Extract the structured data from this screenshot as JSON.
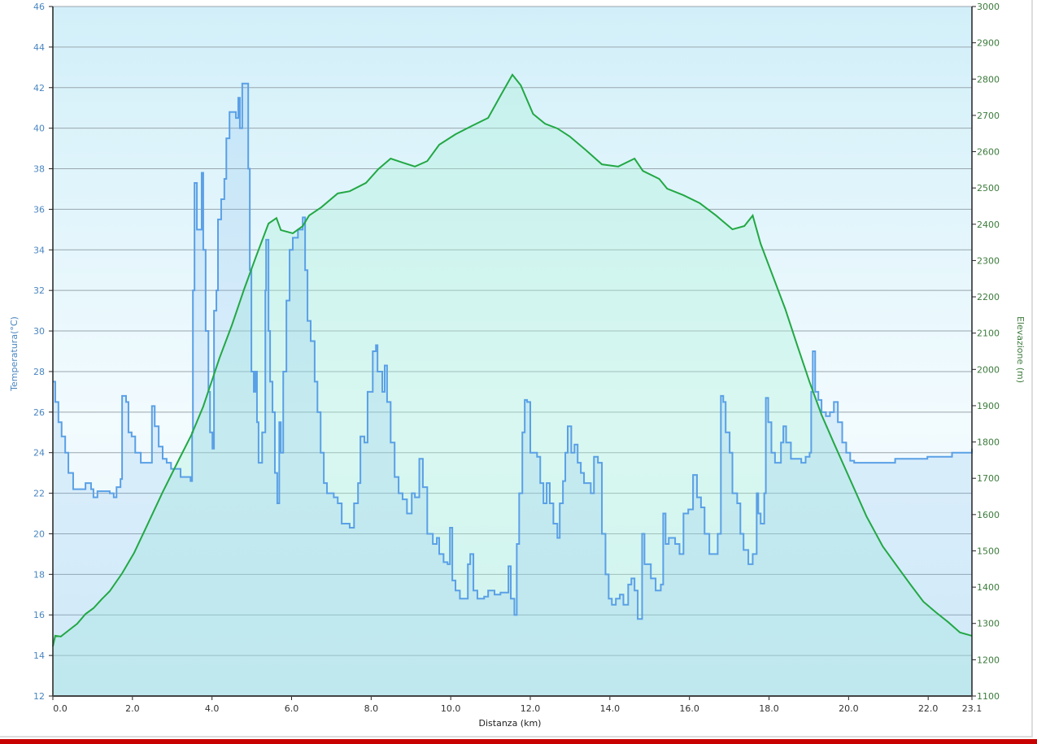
{
  "chart_data": {
    "type": "line",
    "xlabel": "Distanza  (km)",
    "ylabel_left": "Temperatura(°C)",
    "ylabel_right": "Elevazione (m)",
    "xlim": [
      0,
      23.1
    ],
    "ylim_left": [
      12,
      46
    ],
    "ylim_right": [
      1100,
      3000
    ],
    "x_ticks": [
      "0.0",
      "2.0",
      "4.0",
      "6.0",
      "8.0",
      "10.0",
      "12.0",
      "14.0",
      "16.0",
      "18.0",
      "20.0",
      "22.0",
      "23.1"
    ],
    "x_tick_values": [
      0,
      2,
      4,
      6,
      8,
      10,
      12,
      14,
      16,
      18,
      20,
      22,
      23.1
    ],
    "y_left_ticks": [
      "12",
      "14",
      "16",
      "18",
      "20",
      "22",
      "24",
      "26",
      "28",
      "30",
      "32",
      "34",
      "36",
      "38",
      "40",
      "42",
      "44",
      "46"
    ],
    "y_right_ticks": [
      "1100",
      "1200",
      "1300",
      "1400",
      "1500",
      "1600",
      "1700",
      "1800",
      "1900",
      "2000",
      "2100",
      "2200",
      "2300",
      "2400",
      "2500",
      "2600",
      "2700",
      "2800",
      "2900",
      "3000"
    ],
    "grid": true,
    "colors": {
      "temperature": "#5aa0e6",
      "elevation": "#22a844",
      "left_axis": "#4a86c0",
      "right_axis": "#3c7a3c"
    },
    "series": [
      {
        "name": "Temperatura",
        "axis": "left",
        "step": true,
        "x": [
          0,
          0.06,
          0.14,
          0.22,
          0.31,
          0.39,
          0.51,
          0.72,
          0.82,
          0.96,
          1.02,
          1.12,
          1.43,
          1.53,
          1.6,
          1.7,
          1.74,
          1.84,
          1.9,
          1.98,
          2.07,
          2.21,
          2.45,
          2.49,
          2.56,
          2.66,
          2.76,
          2.86,
          2.97,
          3.21,
          3.46,
          3.5,
          3.52,
          3.56,
          3.62,
          3.68,
          3.74,
          3.78,
          3.84,
          3.91,
          3.95,
          4.01,
          4.05,
          4.11,
          4.15,
          4.23,
          4.31,
          4.36,
          4.44,
          4.6,
          4.66,
          4.7,
          4.76,
          4.85,
          4.91,
          4.95,
          4.99,
          5.05,
          5.09,
          5.13,
          5.17,
          5.26,
          5.34,
          5.36,
          5.42,
          5.46,
          5.52,
          5.58,
          5.64,
          5.69,
          5.73,
          5.79,
          5.87,
          5.95,
          6.03,
          6.16,
          6.28,
          6.34,
          6.4,
          6.48,
          6.58,
          6.65,
          6.73,
          6.81,
          6.89,
          7.06,
          7.16,
          7.26,
          7.46,
          7.57,
          7.67,
          7.73,
          7.83,
          7.91,
          8.04,
          8.12,
          8.16,
          8.28,
          8.34,
          8.4,
          8.49,
          8.59,
          8.69,
          8.79,
          8.9,
          9.02,
          9.1,
          9.21,
          9.3,
          9.41,
          9.55,
          9.65,
          9.71,
          9.82,
          9.92,
          9.98,
          10.04,
          10.12,
          10.23,
          10.37,
          10.43,
          10.49,
          10.57,
          10.67,
          10.84,
          10.94,
          11.1,
          11.25,
          11.35,
          11.45,
          11.51,
          11.6,
          11.66,
          11.72,
          11.8,
          11.86,
          11.92,
          12.0,
          12.17,
          12.25,
          12.33,
          12.41,
          12.49,
          12.58,
          12.68,
          12.74,
          12.82,
          12.88,
          12.94,
          13.03,
          13.11,
          13.19,
          13.27,
          13.35,
          13.44,
          13.52,
          13.6,
          13.7,
          13.8,
          13.89,
          13.97,
          14.05,
          14.15,
          14.25,
          14.34,
          14.46,
          14.54,
          14.62,
          14.7,
          14.76,
          14.81,
          14.87,
          14.97,
          15.03,
          15.15,
          15.28,
          15.34,
          15.4,
          15.48,
          15.64,
          15.75,
          15.85,
          15.97,
          16.09,
          16.19,
          16.29,
          16.38,
          16.5,
          16.63,
          16.71,
          16.79,
          16.85,
          16.91,
          17.01,
          17.08,
          17.2,
          17.28,
          17.36,
          17.48,
          17.59,
          17.69,
          17.73,
          17.79,
          17.88,
          17.92,
          17.98,
          18.06,
          18.15,
          18.22,
          18.3,
          18.36,
          18.43,
          18.55,
          18.81,
          18.92,
          19.02,
          19.06,
          19.1,
          19.16,
          19.24,
          19.32,
          19.43,
          19.53,
          19.63,
          19.73,
          19.84,
          19.94,
          20.04,
          20.14,
          21.17,
          21.98,
          22.6,
          23.1
        ],
        "y": [
          27.5,
          26.5,
          25.5,
          24.8,
          24,
          23,
          22.2,
          22.2,
          22.5,
          22.2,
          21.8,
          22.1,
          22,
          21.8,
          22.3,
          22.7,
          26.8,
          26.5,
          25,
          24.8,
          24,
          23.5,
          23.5,
          26.3,
          25.3,
          24.3,
          23.7,
          23.5,
          23.2,
          22.8,
          22.6,
          25,
          32,
          37.3,
          35,
          35,
          37.8,
          34,
          30,
          27,
          25,
          24.2,
          31,
          32,
          35.5,
          36.5,
          37.5,
          39.5,
          40.8,
          40.5,
          41.5,
          40,
          42.2,
          42.2,
          38,
          33,
          28,
          27,
          28,
          25.5,
          23.5,
          25,
          32,
          34.5,
          30,
          27.5,
          26,
          23,
          21.5,
          25.5,
          24,
          28,
          31.5,
          34,
          34.6,
          35,
          35.6,
          33,
          30.5,
          29.5,
          27.5,
          26,
          24,
          22.5,
          22,
          21.8,
          21.5,
          20.5,
          20.3,
          21.5,
          22.5,
          24.8,
          24.5,
          27,
          29,
          29.3,
          28,
          27,
          28.3,
          26.5,
          24.5,
          22.8,
          22,
          21.7,
          21,
          22,
          21.8,
          23.7,
          22.3,
          20,
          19.5,
          19.8,
          19,
          18.6,
          18.5,
          20.3,
          17.7,
          17.2,
          16.8,
          16.8,
          18.5,
          19,
          17.2,
          16.8,
          16.9,
          17.2,
          17,
          17.1,
          17.1,
          18.4,
          16.8,
          16,
          19.5,
          22,
          25,
          26.6,
          26.5,
          24,
          23.8,
          22.5,
          21.5,
          22.5,
          21.5,
          20.5,
          19.8,
          21.5,
          22.6,
          24,
          25.3,
          24,
          24.4,
          23.5,
          23,
          22.5,
          22.5,
          22,
          23.8,
          23.5,
          20,
          18,
          16.8,
          16.5,
          16.8,
          17,
          16.5,
          17.5,
          17.8,
          17.2,
          15.8,
          15.8,
          20,
          18.5,
          18.5,
          17.8,
          17.2,
          17.5,
          21,
          19.5,
          19.8,
          19.5,
          19,
          21,
          21.2,
          22.9,
          21.8,
          21.3,
          20,
          19,
          19,
          20,
          26.8,
          26.5,
          25,
          24,
          22,
          21.5,
          20,
          19.2,
          18.5,
          19,
          22,
          21,
          20.5,
          22,
          26.7,
          25.5,
          24,
          23.5,
          23.5,
          24.5,
          25.3,
          24.5,
          23.7,
          23.5,
          23.8,
          24,
          27,
          29,
          27,
          26.6,
          26,
          25.8,
          26,
          26.5,
          25.5,
          24.5,
          24,
          23.6,
          23.5,
          23.7,
          23.8,
          24,
          24.2
        ]
      },
      {
        "name": "Elevazione",
        "axis": "right",
        "step": false,
        "x": [
          0,
          0.06,
          0.2,
          0.41,
          0.61,
          0.82,
          1.02,
          1.23,
          1.43,
          1.74,
          2.04,
          2.35,
          2.76,
          3.17,
          3.48,
          3.78,
          4.19,
          4.5,
          4.81,
          5.11,
          5.42,
          5.62,
          5.73,
          6.03,
          6.28,
          6.44,
          6.75,
          7.16,
          7.46,
          7.87,
          8.18,
          8.49,
          8.79,
          9.1,
          9.41,
          9.71,
          10.12,
          10.53,
          10.94,
          11.25,
          11.55,
          11.76,
          12.07,
          12.37,
          12.68,
          12.99,
          13.4,
          13.8,
          14.21,
          14.62,
          14.83,
          15.24,
          15.44,
          15.85,
          16.26,
          16.67,
          17.08,
          17.38,
          17.59,
          17.79,
          18.1,
          18.41,
          18.71,
          19.02,
          19.32,
          19.63,
          20.04,
          20.45,
          20.86,
          21.27,
          21.57,
          21.88,
          22.19,
          22.5,
          22.8,
          23.1
        ],
        "y": [
          1237,
          1266,
          1264,
          1282,
          1299,
          1326,
          1342,
          1367,
          1389,
          1438,
          1494,
          1566,
          1662,
          1752,
          1819,
          1898,
          2032,
          2122,
          2222,
          2312,
          2402,
          2417,
          2384,
          2375,
          2395,
          2424,
          2447,
          2485,
          2491,
          2514,
          2552,
          2581,
          2570,
          2559,
          2574,
          2619,
          2648,
          2671,
          2693,
          2754,
          2812,
          2783,
          2704,
          2677,
          2664,
          2642,
          2604,
          2565,
          2559,
          2581,
          2547,
          2525,
          2498,
          2480,
          2458,
          2424,
          2386,
          2395,
          2424,
          2346,
          2256,
          2166,
          2066,
          1965,
          1875,
          1797,
          1696,
          1595,
          1512,
          1450,
          1405,
          1360,
          1331,
          1304,
          1275,
          1266
        ]
      }
    ]
  }
}
